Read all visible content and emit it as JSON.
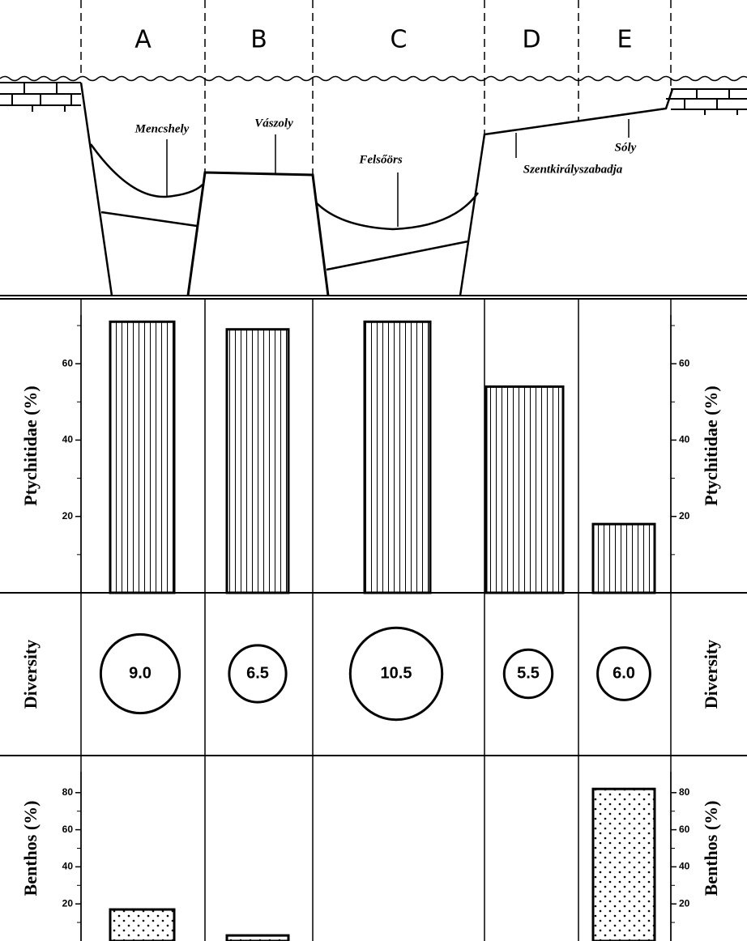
{
  "zones": [
    "A",
    "B",
    "C",
    "D",
    "E"
  ],
  "localities": [
    "Mencshely",
    "Vászoly",
    "Felsőörs",
    "Szentkirályszabadja",
    "Sóly"
  ],
  "chart_data": [
    {
      "type": "bar",
      "y_label": "Ptychitidae (%)",
      "values": [
        71,
        69,
        71,
        54,
        18
      ],
      "ylim": [
        0,
        77
      ],
      "yticks": [
        20,
        40,
        60
      ],
      "minor_yticks": [
        10,
        30,
        50,
        70
      ],
      "fill": "vertical-hatch",
      "color": "#000000"
    },
    {
      "type": "bubble",
      "y_label": "Diversity",
      "values": [
        9.0,
        6.5,
        10.5,
        5.5,
        6.0
      ],
      "value_labels": [
        "9.0",
        "6.5",
        "10.5",
        "5.5",
        "6.0"
      ],
      "color": "#000000"
    },
    {
      "type": "bar",
      "y_label": "Benthos (%)",
      "values": [
        17,
        3,
        null,
        null,
        82
      ],
      "ylim": [
        0,
        100
      ],
      "yticks": [
        20,
        40,
        60,
        80
      ],
      "minor_yticks": [
        10,
        30,
        50,
        70
      ],
      "fill": "dots",
      "color": "#000000"
    }
  ]
}
